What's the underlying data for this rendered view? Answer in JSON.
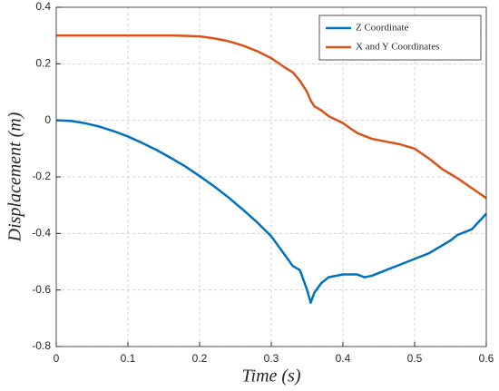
{
  "chart_data": {
    "type": "line",
    "xlabel": "Time (s)",
    "ylabel": "Displacement (m)",
    "x": [
      0,
      0.02,
      0.04,
      0.06,
      0.08,
      0.1,
      0.12,
      0.14,
      0.16,
      0.18,
      0.2,
      0.22,
      0.24,
      0.26,
      0.28,
      0.3,
      0.32,
      0.33,
      0.34,
      0.35,
      0.355,
      0.36,
      0.37,
      0.38,
      0.4,
      0.42,
      0.43,
      0.44,
      0.46,
      0.48,
      0.5,
      0.52,
      0.54,
      0.55,
      0.56,
      0.58,
      0.6
    ],
    "series": [
      {
        "name": "Z Coordinate",
        "color": "#0072bd",
        "values": [
          0,
          -0.002,
          -0.01,
          -0.022,
          -0.038,
          -0.057,
          -0.08,
          -0.105,
          -0.133,
          -0.163,
          -0.197,
          -0.233,
          -0.272,
          -0.315,
          -0.36,
          -0.41,
          -0.48,
          -0.515,
          -0.53,
          -0.6,
          -0.645,
          -0.61,
          -0.575,
          -0.555,
          -0.545,
          -0.545,
          -0.555,
          -0.55,
          -0.53,
          -0.51,
          -0.49,
          -0.47,
          -0.44,
          -0.425,
          -0.405,
          -0.385,
          -0.33
        ]
      },
      {
        "name": "X and Y Coordinates",
        "color": "#d95319",
        "values": [
          0.3,
          0.3,
          0.3,
          0.3,
          0.3,
          0.3,
          0.3,
          0.3,
          0.3,
          0.299,
          0.297,
          0.29,
          0.28,
          0.265,
          0.245,
          0.22,
          0.185,
          0.17,
          0.14,
          0.1,
          0.07,
          0.05,
          0.035,
          0.015,
          -0.01,
          -0.045,
          -0.055,
          -0.065,
          -0.075,
          -0.085,
          -0.1,
          -0.135,
          -0.175,
          -0.19,
          -0.205,
          -0.24,
          -0.275
        ]
      }
    ],
    "xlim": [
      0,
      0.6
    ],
    "xticks": [
      0,
      0.1,
      0.2,
      0.3,
      0.4,
      0.5,
      0.6
    ],
    "ylim": [
      -0.8,
      0.4
    ],
    "yticks": [
      -0.8,
      -0.6,
      -0.4,
      -0.2,
      0,
      0.2,
      0.4
    ],
    "grid": true,
    "legend": "upper right"
  }
}
